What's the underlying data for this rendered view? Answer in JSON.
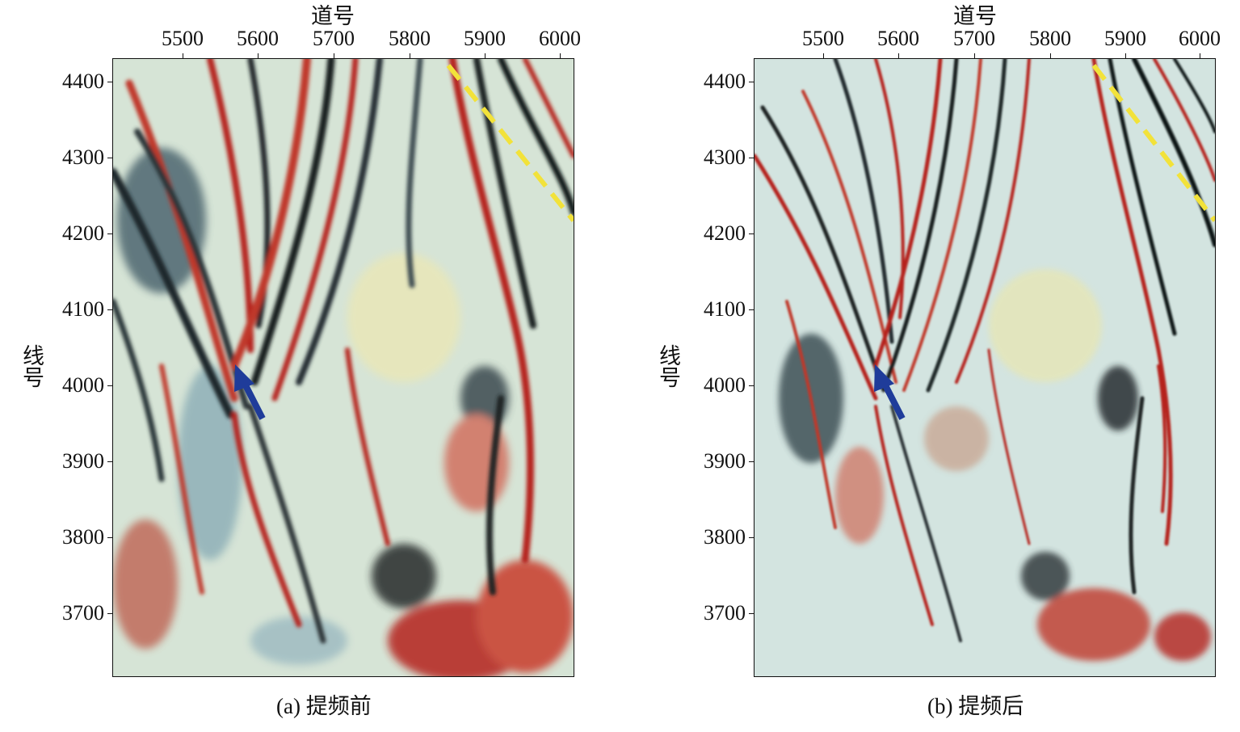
{
  "panels": [
    {
      "xlabel": "道号",
      "ylabel": "线号",
      "xticks": [
        "5500",
        "5600",
        "5700",
        "5800",
        "5900",
        "6000"
      ],
      "yticks": [
        "4400",
        "4300",
        "4200",
        "4100",
        "4000",
        "3900",
        "3800",
        "3700"
      ],
      "caption": "(a) 提频前"
    },
    {
      "xlabel": "道号",
      "ylabel": "线号",
      "xticks": [
        "5500",
        "5600",
        "5700",
        "5800",
        "5900",
        "6000"
      ],
      "yticks": [
        "4400",
        "4300",
        "4200",
        "4100",
        "4000",
        "3900",
        "3800",
        "3700"
      ],
      "caption": "(b) 提频后"
    }
  ],
  "colors": {
    "positive": "#b5241c",
    "neutral": "#d9e3c6",
    "light": "#cfe3e6",
    "negative": "#151a1c",
    "arrow": "#1f3c9a",
    "fault_line": "#f2e23a"
  },
  "annotations": {
    "arrow_icon": "blue-arrow-icon",
    "fault_marker": "yellow-dashed-line"
  }
}
